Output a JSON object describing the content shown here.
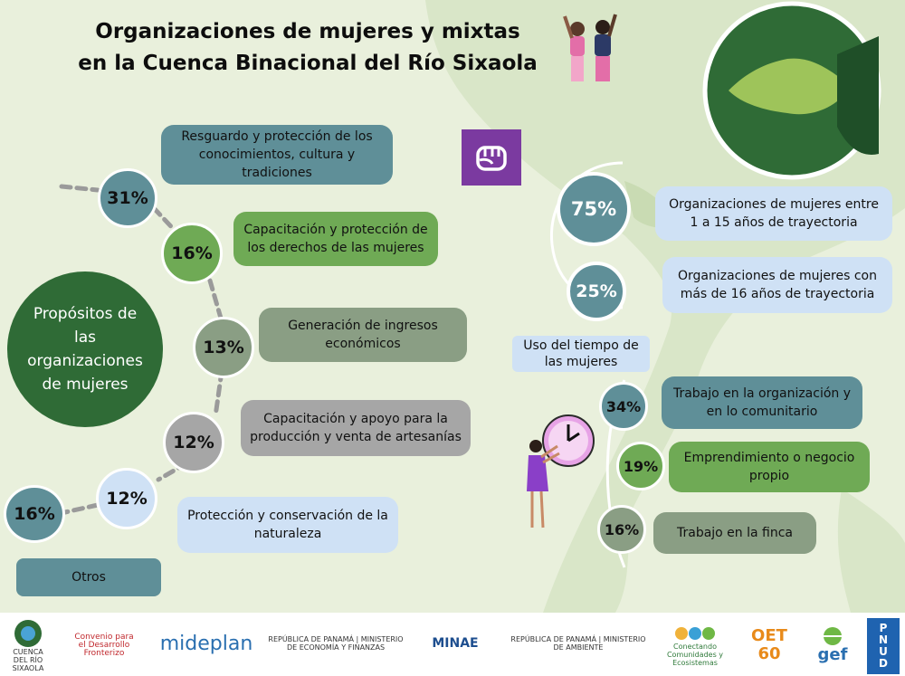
{
  "title": {
    "line1": "Organizaciones de mujeres y mixtas",
    "line2": "en la Cuenca Binacional del Río Sixaola"
  },
  "purposes": {
    "center_label": "Propósitos de las organizaciones de mujeres",
    "items": [
      {
        "percent": "31%",
        "label": "Resguardo y protección de los conocimientos, cultura y tradiciones"
      },
      {
        "percent": "16%",
        "label": "Capacitación y protección de los derechos de las mujeres"
      },
      {
        "percent": "13%",
        "label": "Generación de ingresos económicos"
      },
      {
        "percent": "12%",
        "label": "Capacitación y apoyo para la producción y venta de artesanías"
      },
      {
        "percent": "12%",
        "label": "Protección y conservación de la naturaleza"
      },
      {
        "percent": "16%",
        "label": "Otros"
      }
    ]
  },
  "trajectory": {
    "items": [
      {
        "percent": "75%",
        "label": "Organizaciones de mujeres entre 1 a 15 años de trayectoria"
      },
      {
        "percent": "25%",
        "label": "Organizaciones de mujeres con más de 16 años de trayectoria"
      }
    ]
  },
  "time_use": {
    "heading": "Uso del tiempo de las mujeres",
    "items": [
      {
        "percent": "34%",
        "label": "Trabajo en la organización y en lo comunitario"
      },
      {
        "percent": "19%",
        "label": "Emprendimiento o negocio propio"
      },
      {
        "percent": "16%",
        "label": "Trabajo en la finca"
      }
    ]
  },
  "footer": {
    "logos": [
      "CUENCA DEL RÍO SIXAOLA",
      "Convenio para el Desarrollo Fronterizo",
      "mideplan",
      "REPÚBLICA DE PANAMÁ | MINISTERIO DE ECONOMÍA Y FINANZAS",
      "MINAE",
      "REPÚBLICA DE PANAMÁ | MINISTERIO DE AMBIENTE",
      "Conectando Comunidades y Ecosistemas",
      "OET 60",
      "gef",
      "PNUD"
    ]
  },
  "colors": {
    "background": "#e9f0dc",
    "teal": "#5f8f98",
    "green": "#6faa55",
    "gray_green": "#8a9e84",
    "gray": "#a6a6a6",
    "light_blue": "#cfe1f5",
    "dark_green": "#2f6b36",
    "purple": "#7b3aa0"
  }
}
